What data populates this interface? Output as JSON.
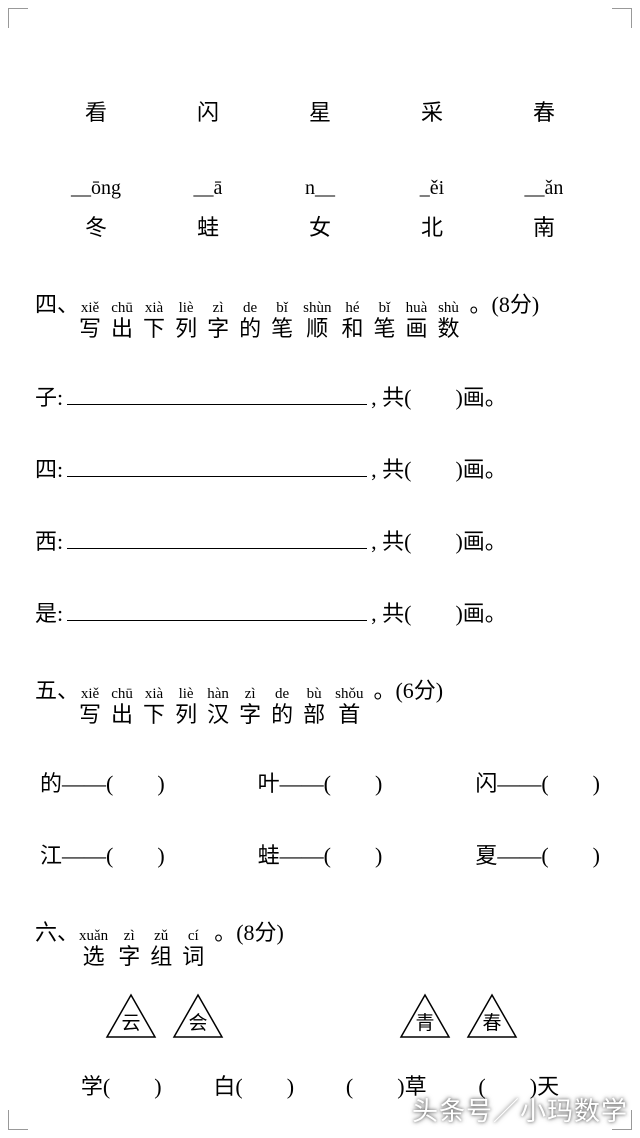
{
  "row1": {
    "c1": "看",
    "c2": "闪",
    "c3": "星",
    "c4": "采",
    "c5": "春"
  },
  "row_pinyin": {
    "p1": "__ōng",
    "p2": "__ā",
    "p3": "n__",
    "p4": "_ěi",
    "p5": "__ǎn"
  },
  "row2": {
    "c1": "冬",
    "c2": "蛙",
    "c3": "女",
    "c4": "北",
    "c5": "南"
  },
  "section4": {
    "num": "四、",
    "chars": [
      {
        "py": "xiě",
        "hz": "写"
      },
      {
        "py": "chū",
        "hz": "出"
      },
      {
        "py": "xià",
        "hz": "下"
      },
      {
        "py": "liè",
        "hz": "列"
      },
      {
        "py": "zì",
        "hz": "字"
      },
      {
        "py": "de",
        "hz": "的"
      },
      {
        "py": "bǐ",
        "hz": "笔"
      },
      {
        "py": "shùn",
        "hz": "顺"
      },
      {
        "py": "hé",
        "hz": "和"
      },
      {
        "py": "bǐ",
        "hz": "笔"
      },
      {
        "py": "huà",
        "hz": "画"
      },
      {
        "py": "shù",
        "hz": "数"
      }
    ],
    "tail": "。(8分)",
    "lines": [
      {
        "char": "子:",
        "suffix": ", 共(　　)画。"
      },
      {
        "char": "四:",
        "suffix": ", 共(　　)画。"
      },
      {
        "char": "西:",
        "suffix": ", 共(　　)画。"
      },
      {
        "char": "是:",
        "suffix": ", 共(　　)画。"
      }
    ]
  },
  "section5": {
    "num": "五、",
    "chars": [
      {
        "py": "xiě",
        "hz": "写"
      },
      {
        "py": "chū",
        "hz": "出"
      },
      {
        "py": "xià",
        "hz": "下"
      },
      {
        "py": "liè",
        "hz": "列"
      },
      {
        "py": "hàn",
        "hz": "汉"
      },
      {
        "py": "zì",
        "hz": "字"
      },
      {
        "py": "de",
        "hz": "的"
      },
      {
        "py": "bù",
        "hz": "部"
      },
      {
        "py": "shǒu",
        "hz": "首"
      }
    ],
    "tail": "。(6分)",
    "radicals_row1": {
      "a": "的——(　　)",
      "b": "叶——(　　)",
      "c": "闪——(　　)"
    },
    "radicals_row2": {
      "a": "江——(　　)",
      "b": "蛙——(　　)",
      "c": "夏——(　　)"
    }
  },
  "section6": {
    "num": "六、",
    "chars": [
      {
        "py": "xuǎn",
        "hz": "选"
      },
      {
        "py": "zì",
        "hz": "字"
      },
      {
        "py": "zǔ",
        "hz": "组"
      },
      {
        "py": "cí",
        "hz": "词"
      }
    ],
    "tail": "。(8分)",
    "triangles": {
      "t1": "云",
      "t2": "会",
      "t3": "青",
      "t4": "春"
    },
    "fills": {
      "f1": "学(　　)",
      "f2": "白(　　)",
      "f3": "(　　)草",
      "f4": "(　　)天"
    }
  },
  "watermark": "头条号／小玛数学"
}
